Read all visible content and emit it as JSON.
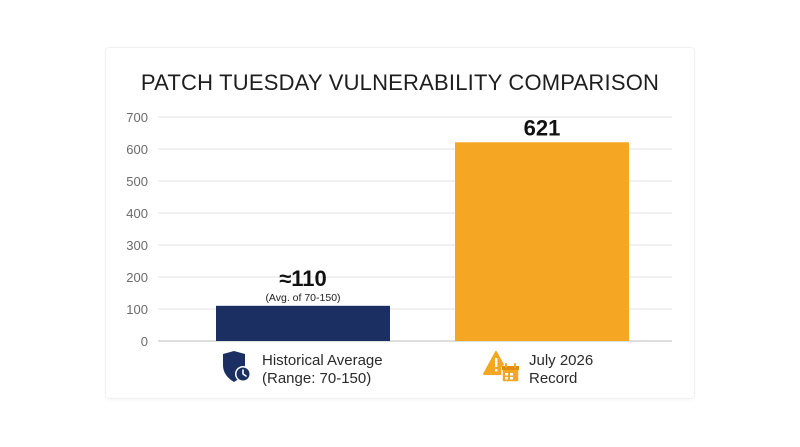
{
  "chart_data": {
    "type": "bar",
    "title": "PATCH TUESDAY VULNERABILITY COMPARISON",
    "categories": [
      "Historical Average\n(Range: 70-150)",
      "July 2026\nRecord"
    ],
    "values": [
      110,
      621
    ],
    "value_labels": [
      "≈110",
      "621"
    ],
    "sub_labels": [
      "(Avg. of 70-150)",
      ""
    ],
    "colors": [
      "#1b2f63",
      "#f5a623"
    ],
    "ylim": [
      0,
      700
    ],
    "yticks": [
      0,
      100,
      200,
      300,
      400,
      500,
      600,
      700
    ],
    "grid": true,
    "xlabel": "",
    "ylabel": ""
  },
  "icons": [
    "shield-clock-icon",
    "warning-calendar-icon"
  ]
}
